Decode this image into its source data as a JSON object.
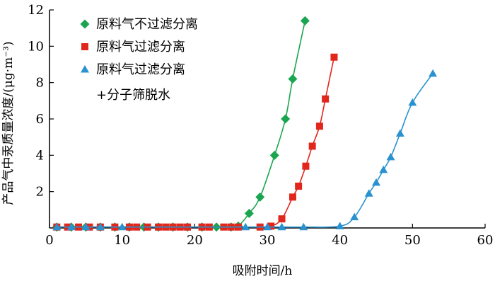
{
  "chart_data": {
    "type": "scatter",
    "xlabel": "吸附时间/h",
    "ylabel": "产品气中汞质量浓度/(μg·m⁻³)",
    "xlim": [
      0,
      60
    ],
    "ylim": [
      0,
      12
    ],
    "x_ticks": [
      "0",
      "10",
      "20",
      "30",
      "40",
      "50",
      "60"
    ],
    "y_ticks": [
      "2",
      "4",
      "6",
      "8",
      "10",
      "12"
    ],
    "grid": false,
    "legend_position": "top-left",
    "series": [
      {
        "name": "原料气不过滤分离",
        "color": "#1aa550",
        "marker": "diamond",
        "line": true,
        "x": [
          1,
          3,
          5,
          7,
          9,
          11,
          13,
          15,
          17,
          19,
          21,
          23,
          25,
          26,
          27.5,
          29,
          31,
          32.5,
          33.5,
          35.2
        ],
        "y": [
          0.05,
          0.05,
          0.05,
          0.05,
          0.05,
          0.05,
          0.05,
          0.05,
          0.05,
          0.05,
          0.05,
          0.05,
          0.05,
          0.1,
          0.8,
          1.7,
          4.0,
          6.0,
          8.2,
          11.4
        ]
      },
      {
        "name": "原料气过滤分离",
        "color": "#e1261c",
        "marker": "square",
        "line": true,
        "x": [
          1,
          2.5,
          4,
          5.5,
          7,
          9,
          11,
          12,
          13.5,
          15,
          16,
          17,
          18,
          19,
          21,
          22,
          24,
          25,
          26,
          29,
          30.5,
          32,
          33.5,
          34.3,
          35.3,
          36.2,
          37.2,
          38,
          39.2
        ],
        "y": [
          0.05,
          0.05,
          0.05,
          0.05,
          0.05,
          0.05,
          0.05,
          0.05,
          0.05,
          0.05,
          0.05,
          0.05,
          0.05,
          0.05,
          0.05,
          0.05,
          0.05,
          0.05,
          0.05,
          0.05,
          0.1,
          0.5,
          1.7,
          2.3,
          3.4,
          4.5,
          5.6,
          7.1,
          9.4
        ]
      },
      {
        "name": "原料气过滤分离+分子筛脱水",
        "name_lines": [
          "原料气过滤分离",
          "+分子筛脱水"
        ],
        "color": "#2a92cf",
        "marker": "triangle",
        "line": true,
        "x": [
          1,
          3,
          5,
          7,
          10,
          27,
          30,
          32,
          35,
          40,
          42,
          44,
          45,
          46,
          47,
          48.3,
          50,
          52.8
        ],
        "y": [
          0.05,
          0.05,
          0.05,
          0.05,
          0.05,
          0.05,
          0.05,
          0.05,
          0.05,
          0.1,
          0.6,
          1.9,
          2.5,
          3.2,
          3.9,
          5.2,
          6.9,
          8.5
        ]
      }
    ]
  }
}
